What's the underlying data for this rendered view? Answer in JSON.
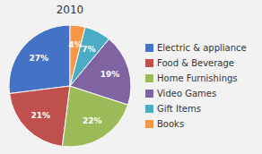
{
  "chart_data": {
    "type": "pie",
    "title": "2010",
    "categories": [
      "Electric & appliance",
      "Food & Beverage",
      "Home Furnishings",
      "Video Games",
      "Gift Items",
      "Books"
    ],
    "values": [
      27,
      21,
      22,
      19,
      7,
      4
    ],
    "value_labels": [
      "27%",
      "21%",
      "22%",
      "19%",
      "7%",
      "4%"
    ],
    "colors": [
      "#4472C4",
      "#C0504D",
      "#9BBB59",
      "#8064A2",
      "#4BACC6",
      "#F79646"
    ],
    "data_labels": true,
    "legend": "right"
  }
}
